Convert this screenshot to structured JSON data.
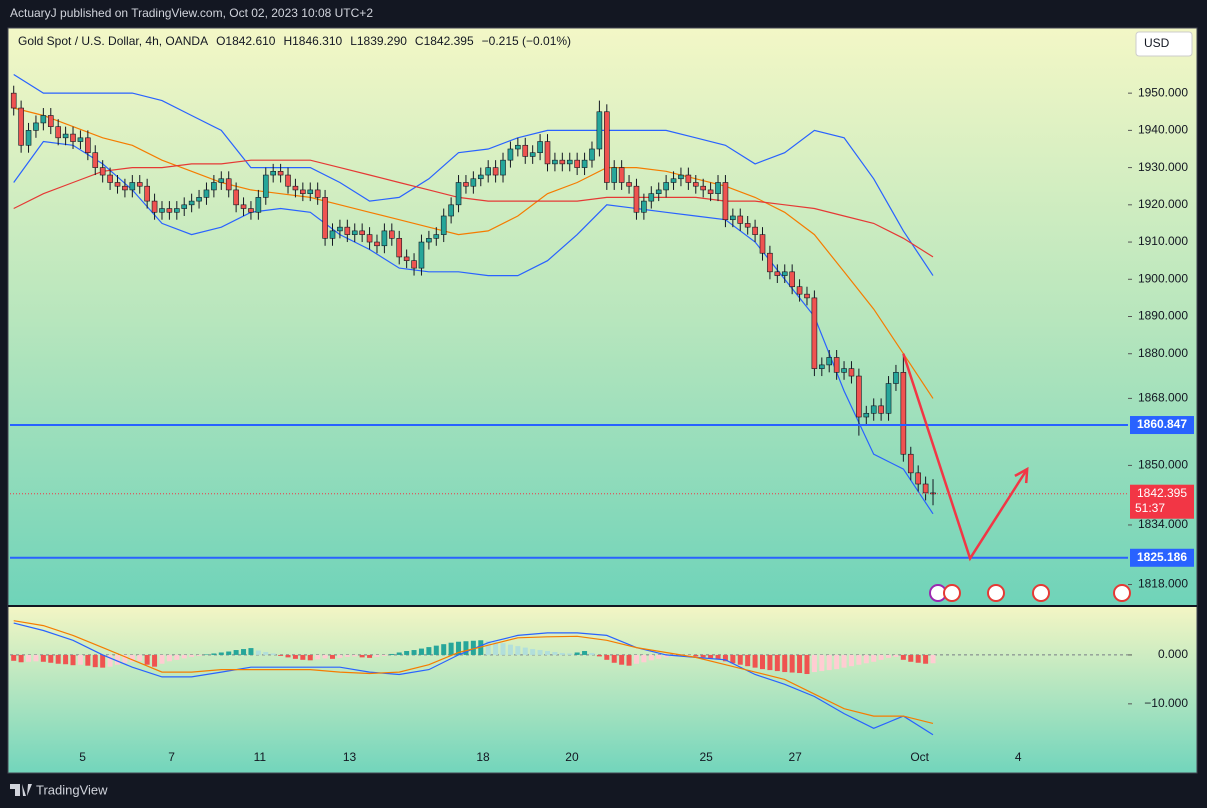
{
  "header": {
    "publisher": "ActuaryJ published on TradingView.com, Oct 02, 2023 10:08 UTC+2",
    "currency": "USD",
    "footer": "TradingView"
  },
  "chart_data": [
    {
      "type": "candlestick",
      "title": "Gold Spot / U.S. Dollar, 4h, OANDA",
      "ohlc_legend": [
        "O1842.610",
        "H1846.310",
        "L1839.290",
        "C1842.395",
        "−0.215 (−0.01%)"
      ],
      "up_color": "#26a69a",
      "down_color": "#ef5350",
      "open": [
        1950,
        1946,
        1936,
        1940,
        1942,
        1944,
        1941,
        1938,
        1939,
        1937,
        1938,
        1934,
        1930,
        1928,
        1926,
        1925,
        1924,
        1926,
        1925,
        1921,
        1918,
        1919,
        1918,
        1919,
        1920,
        1921,
        1922,
        1924,
        1926,
        1927,
        1924,
        1920,
        1919,
        1918,
        1922,
        1928,
        1929,
        1928,
        1925,
        1924,
        1923,
        1924,
        1922,
        1911,
        1913,
        1914,
        1912,
        1913,
        1912,
        1910,
        1909,
        1913,
        1911,
        1906,
        1905,
        1903,
        1910,
        1911,
        1912,
        1917,
        1920,
        1926,
        1925,
        1927,
        1928,
        1930,
        1928,
        1932,
        1935,
        1936,
        1933,
        1934,
        1937,
        1931,
        1932,
        1931,
        1932,
        1930,
        1932,
        1935,
        1945,
        1926,
        1930,
        1926,
        1925,
        1918,
        1921,
        1923,
        1924,
        1926,
        1927,
        1928,
        1926,
        1925,
        1924,
        1923,
        1926,
        1916,
        1917,
        1915,
        1914,
        1912,
        1907,
        1902,
        1901,
        1902,
        1898,
        1896,
        1895,
        1876,
        1877,
        1879,
        1875,
        1876,
        1874,
        1863,
        1864,
        1866,
        1864,
        1872,
        1875,
        1853,
        1848,
        1845,
        1842.61
      ],
      "high": [
        1952,
        1948,
        1942,
        1944,
        1946,
        1946,
        1943,
        1941,
        1941,
        1940,
        1940,
        1936,
        1932,
        1930,
        1928,
        1927,
        1928,
        1928,
        1927,
        1923,
        1921,
        1921,
        1921,
        1922,
        1923,
        1924,
        1926,
        1928,
        1929,
        1929,
        1926,
        1922,
        1921,
        1924,
        1930,
        1931,
        1931,
        1930,
        1927,
        1926,
        1926,
        1926,
        1924,
        1915,
        1916,
        1916,
        1915,
        1915,
        1914,
        1912,
        1915,
        1915,
        1913,
        1908,
        1907,
        1912,
        1913,
        1914,
        1919,
        1922,
        1928,
        1928,
        1929,
        1930,
        1932,
        1932,
        1934,
        1937,
        1938,
        1938,
        1936,
        1939,
        1939,
        1934,
        1934,
        1934,
        1934,
        1934,
        1937,
        1948,
        1947,
        1932,
        1932,
        1928,
        1927,
        1923,
        1925,
        1926,
        1928,
        1929,
        1930,
        1930,
        1928,
        1927,
        1926,
        1928,
        1928,
        1919,
        1919,
        1917,
        1916,
        1914,
        1909,
        1904,
        1904,
        1904,
        1900,
        1898,
        1897,
        1879,
        1881,
        1881,
        1878,
        1878,
        1876,
        1866,
        1868,
        1868,
        1874,
        1877,
        1880,
        1855,
        1850,
        1847,
        1846.31
      ],
      "low": [
        1944,
        1934,
        1934,
        1938,
        1940,
        1939,
        1936,
        1936,
        1935,
        1935,
        1932,
        1928,
        1926,
        1924,
        1923,
        1922,
        1922,
        1923,
        1919,
        1916,
        1916,
        1916,
        1916,
        1917,
        1918,
        1919,
        1920,
        1922,
        1924,
        1922,
        1918,
        1917,
        1916,
        1916,
        1920,
        1926,
        1926,
        1923,
        1922,
        1921,
        1921,
        1920,
        1909,
        1909,
        1911,
        1910,
        1910,
        1910,
        1908,
        1907,
        1907,
        1909,
        1904,
        1903,
        1901,
        1901,
        1908,
        1909,
        1910,
        1915,
        1918,
        1923,
        1923,
        1925,
        1926,
        1926,
        1926,
        1930,
        1933,
        1931,
        1931,
        1932,
        1929,
        1929,
        1929,
        1929,
        1928,
        1928,
        1930,
        1933,
        1924,
        1924,
        1924,
        1923,
        1916,
        1916,
        1919,
        1921,
        1922,
        1924,
        1925,
        1924,
        1923,
        1922,
        1921,
        1921,
        1914,
        1914,
        1913,
        1912,
        1910,
        1905,
        1900,
        1899,
        1899,
        1896,
        1894,
        1893,
        1874,
        1874,
        1875,
        1873,
        1873,
        1872,
        1858,
        1861,
        1862,
        1862,
        1862,
        1870,
        1851,
        1846,
        1843,
        1840.6,
        1839.29
      ],
      "close": [
        1946,
        1936,
        1940,
        1942,
        1944,
        1941,
        1938,
        1939,
        1937,
        1938,
        1934,
        1930,
        1928,
        1926,
        1925,
        1924,
        1926,
        1925,
        1921,
        1918,
        1919,
        1918,
        1919,
        1920,
        1921,
        1922,
        1924,
        1926,
        1927,
        1924,
        1920,
        1919,
        1918,
        1922,
        1928,
        1929,
        1928,
        1925,
        1924,
        1923,
        1924,
        1922,
        1911,
        1913,
        1914,
        1912,
        1913,
        1912,
        1910,
        1909,
        1913,
        1911,
        1906,
        1905,
        1903,
        1910,
        1911,
        1912,
        1917,
        1920,
        1926,
        1925,
        1927,
        1928,
        1930,
        1928,
        1932,
        1935,
        1936,
        1933,
        1934,
        1937,
        1931,
        1932,
        1931,
        1932,
        1930,
        1932,
        1935,
        1945,
        1926,
        1930,
        1926,
        1925,
        1918,
        1921,
        1923,
        1924,
        1926,
        1927,
        1928,
        1926,
        1925,
        1924,
        1923,
        1926,
        1916,
        1917,
        1915,
        1914,
        1912,
        1907,
        1902,
        1901,
        1902,
        1898,
        1896,
        1895,
        1876,
        1877,
        1879,
        1875,
        1876,
        1874,
        1863,
        1864,
        1866,
        1864,
        1872,
        1875,
        1853,
        1848,
        1845,
        1842.61,
        1842.395
      ],
      "series": [
        {
          "color": "#2962ff",
          "x": [
            0,
            4,
            8,
            12,
            16,
            20,
            24,
            28,
            32,
            36,
            40,
            44,
            48,
            52,
            56,
            60,
            64,
            68,
            72,
            76,
            80,
            84,
            88,
            92,
            96,
            100,
            104,
            108,
            112,
            116,
            120,
            124
          ],
          "values": [
            1955,
            1950,
            1950,
            1950,
            1950,
            1948,
            1944,
            1940,
            1930,
            1930,
            1930,
            1926,
            1921,
            1922,
            1927,
            1934,
            1935,
            1938,
            1940,
            1940,
            1940,
            1940,
            1940,
            1938,
            1936,
            1931,
            1934,
            1940,
            1938,
            1927,
            1913,
            1901
          ]
        },
        {
          "color": "#2962ff",
          "x": [
            0,
            4,
            8,
            12,
            16,
            20,
            24,
            28,
            32,
            36,
            40,
            44,
            48,
            52,
            56,
            60,
            64,
            68,
            72,
            76,
            80,
            84,
            88,
            92,
            96,
            100,
            104,
            108,
            112,
            116,
            120,
            124
          ],
          "values": [
            1926,
            1937,
            1936,
            1931,
            1924,
            1915,
            1912,
            1914,
            1918,
            1919,
            1918,
            1912,
            1908,
            1903,
            1902,
            1902,
            1901,
            1901,
            1905,
            1912,
            1920,
            1919,
            1918,
            1917,
            1916,
            1910,
            1900,
            1890,
            1870,
            1853,
            1849,
            1837
          ]
        },
        {
          "color": "#f57c00",
          "x": [
            0,
            4,
            8,
            12,
            16,
            20,
            24,
            28,
            32,
            36,
            40,
            44,
            48,
            52,
            56,
            60,
            64,
            68,
            72,
            76,
            80,
            84,
            88,
            92,
            96,
            100,
            104,
            108,
            112,
            116,
            120,
            124
          ],
          "values": [
            1946,
            1944,
            1941,
            1938,
            1936,
            1932,
            1929,
            1926,
            1924,
            1923,
            1922,
            1920,
            1918,
            1916,
            1914,
            1912,
            1913,
            1917,
            1923,
            1926,
            1930,
            1930,
            1929,
            1927,
            1925,
            1922,
            1918,
            1912,
            1902,
            1892,
            1880,
            1868
          ]
        },
        {
          "color": "#e53935",
          "x": [
            0,
            4,
            8,
            12,
            16,
            20,
            24,
            28,
            32,
            36,
            40,
            44,
            48,
            52,
            56,
            60,
            64,
            68,
            72,
            76,
            80,
            84,
            88,
            92,
            96,
            100,
            104,
            108,
            112,
            116,
            120,
            124
          ],
          "values": [
            1919,
            1923,
            1926,
            1929,
            1930,
            1930,
            1931,
            1931,
            1932,
            1932,
            1932,
            1930,
            1928,
            1926,
            1924,
            1922,
            1921,
            1921,
            1921,
            1921,
            1922,
            1922,
            1922,
            1922,
            1921,
            1921,
            1920,
            1919,
            1917,
            1915,
            1911,
            1906
          ]
        }
      ],
      "levels": [
        {
          "value": 1860.847,
          "color": "#2962ff"
        },
        {
          "value": 1825.186,
          "color": "#2962ff"
        }
      ],
      "last_price": 1842.395,
      "countdown": "51:37",
      "last_color": "#f23645",
      "drawing": {
        "color": "#f23645",
        "x": [
          120,
          129,
          136.7
        ],
        "y": [
          1880,
          1825,
          1849
        ]
      },
      "xlim": [
        -0.5,
        150.3
      ],
      "ylim": [
        1812.5,
        1967.5
      ],
      "yticks": [
        {
          "value": 1950,
          "label": "1950.000"
        },
        {
          "value": 1940,
          "label": "1940.000"
        },
        {
          "value": 1930,
          "label": "1930.000"
        },
        {
          "value": 1920,
          "label": "1920.000"
        },
        {
          "value": 1910,
          "label": "1910.000"
        },
        {
          "value": 1900,
          "label": "1900.000"
        },
        {
          "value": 1890,
          "label": "1890.000"
        },
        {
          "value": 1880,
          "label": "1880.000"
        },
        {
          "value": 1868,
          "label": "1868.000"
        },
        {
          "value": 1850,
          "label": "1850.000"
        },
        {
          "value": 1834,
          "label": "1834.000"
        },
        {
          "value": 1818,
          "label": "1818.000"
        }
      ],
      "xticks": [
        {
          "value": 9.3,
          "label": "5"
        },
        {
          "value": 21.3,
          "label": "7"
        },
        {
          "value": 33.2,
          "label": "11"
        },
        {
          "value": 45.3,
          "label": "13"
        },
        {
          "value": 63.3,
          "label": "18"
        },
        {
          "value": 75.3,
          "label": "20"
        },
        {
          "value": 93.4,
          "label": "25"
        },
        {
          "value": 105.4,
          "label": "27"
        },
        {
          "value": 122.2,
          "label": "Oct"
        },
        {
          "value": 135.5,
          "label": "4"
        }
      ]
    },
    {
      "type": "macd",
      "hist_colors": [
        "#26a69a",
        "#b2dfdb",
        "#ef5350",
        "#ffcdd2"
      ],
      "values": [
        -1.2,
        -1.5,
        -1.4,
        -1.3,
        -1.4,
        -1.6,
        -1.8,
        -1.9,
        -2.1,
        -2.0,
        -2.2,
        -2.5,
        -2.6,
        -2.4,
        -2.0,
        -1.6,
        -1.4,
        -1.2,
        -2.0,
        -2.4,
        -1.8,
        -1.3,
        -1.0,
        -0.7,
        -0.4,
        -0.2,
        0.1,
        0.3,
        0.5,
        0.7,
        1.0,
        1.2,
        1.4,
        0.9,
        0.6,
        0.3,
        -0.2,
        -0.5,
        -0.8,
        -1.0,
        -1.1,
        -0.9,
        -0.7,
        -0.8,
        -0.6,
        -0.4,
        -0.3,
        -0.5,
        -0.6,
        -0.4,
        -0.2,
        0.2,
        0.5,
        0.8,
        1.0,
        1.3,
        1.6,
        1.9,
        2.2,
        2.5,
        2.7,
        2.8,
        2.9,
        3.0,
        2.8,
        2.6,
        2.4,
        2.1,
        1.8,
        1.5,
        1.2,
        1.0,
        0.8,
        0.6,
        0.4,
        0.3,
        0.5,
        0.8,
        0.4,
        -0.3,
        -1.0,
        -1.6,
        -2.0,
        -2.2,
        -1.8,
        -1.5,
        -1.1,
        -0.8,
        -0.5,
        -0.3,
        -0.2,
        -0.1,
        -0.3,
        -0.5,
        -0.7,
        -0.9,
        -1.3,
        -1.7,
        -2.0,
        -2.3,
        -2.6,
        -2.9,
        -3.1,
        -3.3,
        -3.5,
        -3.6,
        -3.7,
        -3.9,
        -3.5,
        -3.3,
        -3.1,
        -2.9,
        -2.6,
        -2.3,
        -2.0,
        -1.7,
        -1.4,
        -1.0,
        -0.6,
        -0.4,
        -1.0,
        -1.4,
        -1.6,
        -1.8,
        -1.7
      ],
      "series": [
        {
          "color": "#2962ff",
          "x": [
            0,
            4,
            8,
            12,
            16,
            20,
            24,
            28,
            32,
            36,
            40,
            44,
            48,
            52,
            56,
            60,
            64,
            68,
            72,
            76,
            80,
            84,
            88,
            92,
            96,
            100,
            104,
            108,
            112,
            116,
            120,
            124
          ],
          "values": [
            6.5,
            5,
            3,
            0,
            -2.5,
            -4.5,
            -4.5,
            -3.5,
            -2.5,
            -2.5,
            -2.5,
            -2.5,
            -3.5,
            -4,
            -3,
            0,
            2.5,
            4,
            4.5,
            4.5,
            4,
            1.5,
            0,
            -0.5,
            -1,
            -4,
            -6,
            -8.5,
            -12,
            -15,
            -12.5,
            -16.3
          ]
        },
        {
          "color": "#f57c00",
          "x": [
            0,
            4,
            8,
            12,
            16,
            20,
            24,
            28,
            32,
            36,
            40,
            44,
            48,
            52,
            56,
            60,
            64,
            68,
            72,
            76,
            80,
            84,
            88,
            92,
            96,
            100,
            104,
            108,
            112,
            116,
            120,
            124
          ],
          "values": [
            7,
            6,
            4,
            1.5,
            -1,
            -3.5,
            -3.5,
            -3,
            -3,
            -3,
            -3,
            -3.5,
            -3.8,
            -3.5,
            -2,
            0.5,
            2,
            3.5,
            3.7,
            3.8,
            3,
            1.5,
            0.5,
            -0.5,
            -2,
            -3.5,
            -5,
            -8,
            -11,
            -12.5,
            -12.5,
            -14
          ]
        }
      ],
      "xlim": [
        -0.5,
        150.3
      ],
      "ylim": [
        -17.8,
        9.8
      ],
      "yticks": [
        {
          "value": 0,
          "label": "0.000"
        },
        {
          "value": -10,
          "label": "−10.000"
        }
      ]
    }
  ]
}
